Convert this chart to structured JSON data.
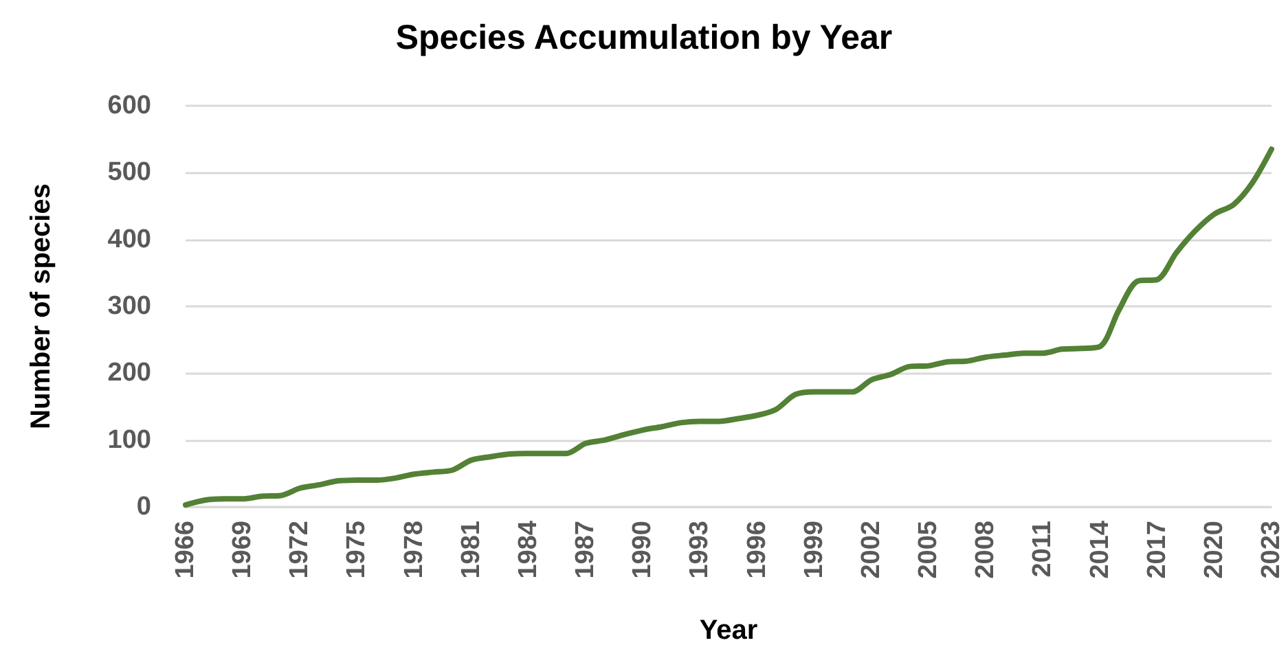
{
  "chart_data": {
    "type": "line",
    "title": "Species Accumulation by Year",
    "xlabel": "Year",
    "ylabel": "Number of species",
    "x": [
      1966,
      1967,
      1968,
      1969,
      1970,
      1971,
      1972,
      1973,
      1974,
      1975,
      1976,
      1977,
      1978,
      1979,
      1980,
      1981,
      1982,
      1983,
      1984,
      1985,
      1986,
      1987,
      1988,
      1989,
      1990,
      1991,
      1992,
      1993,
      1994,
      1995,
      1996,
      1997,
      1998,
      1999,
      2000,
      2001,
      2002,
      2003,
      2004,
      2005,
      2006,
      2007,
      2008,
      2009,
      2010,
      2011,
      2012,
      2013,
      2014,
      2015,
      2016,
      2017,
      2018,
      2019,
      2020,
      2021,
      2022,
      2023
    ],
    "series": [
      {
        "color": "#538135",
        "values": [
          3,
          10,
          12,
          12,
          16,
          17,
          28,
          33,
          39,
          40,
          40,
          43,
          49,
          52,
          55,
          70,
          75,
          79,
          80,
          80,
          80,
          95,
          100,
          108,
          115,
          120,
          126,
          128,
          128,
          132,
          137,
          146,
          168,
          172,
          172,
          172,
          190,
          198,
          210,
          211,
          217,
          218,
          224,
          227,
          230,
          230,
          236,
          237,
          240,
          295,
          338,
          340,
          380,
          413,
          438,
          452,
          485,
          535
        ]
      }
    ],
    "xlim": [
      1966,
      2023
    ],
    "xticks": [
      1966,
      1969,
      1972,
      1975,
      1978,
      1981,
      1984,
      1987,
      1990,
      1993,
      1996,
      1999,
      2002,
      2005,
      2008,
      2011,
      2014,
      2017,
      2020,
      2023
    ],
    "ylim": [
      0,
      600
    ],
    "yticks": [
      0,
      100,
      200,
      300,
      400,
      500,
      600
    ],
    "grid": "y",
    "marker": "none",
    "line_style": "solid"
  }
}
